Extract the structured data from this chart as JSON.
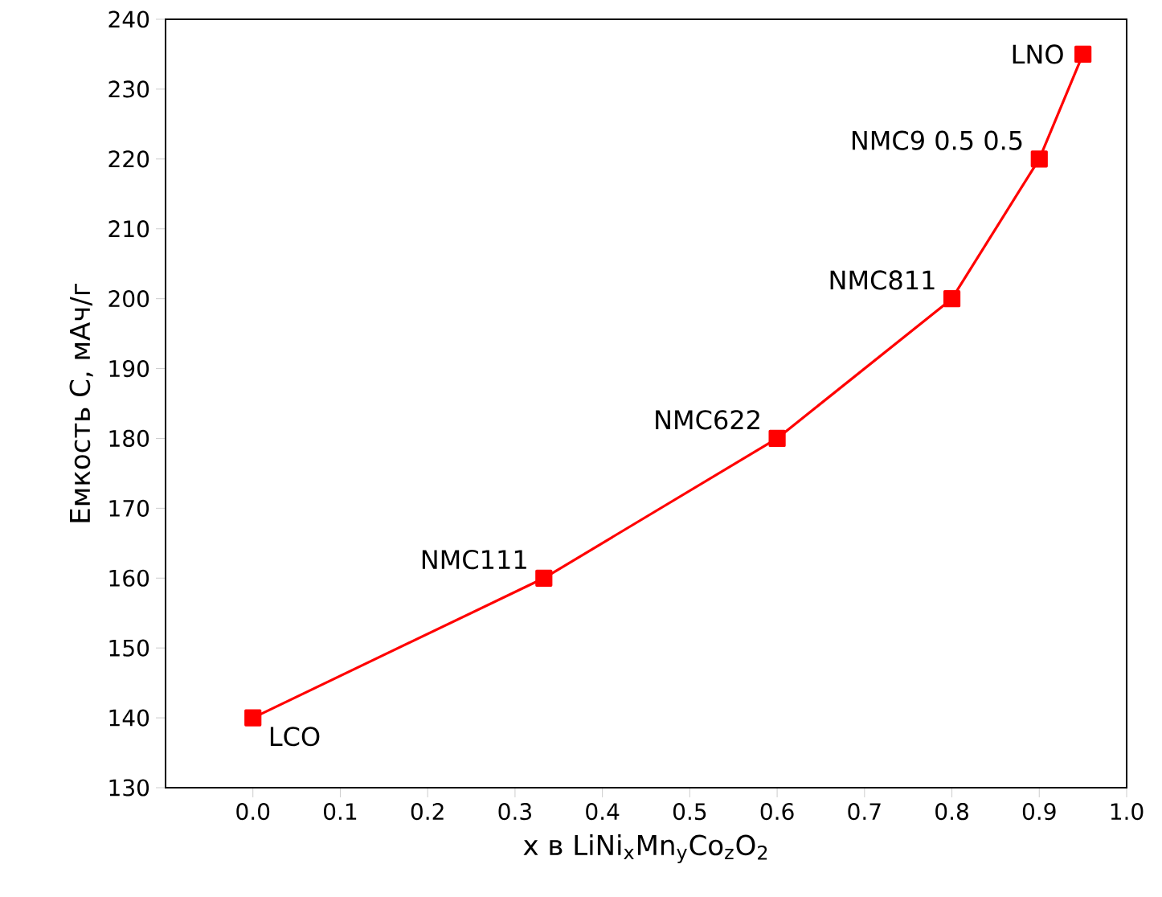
{
  "chart_data": {
    "type": "line",
    "xlabel": "x в LiNi$_{x}$Mn$_{y}$Co$_{z}$O$_{2}$",
    "ylabel": "Емкость C, мАч/г",
    "x": [
      0.0,
      0.333,
      0.6,
      0.8,
      0.9,
      0.95
    ],
    "series": [
      {
        "color": "#ff0000",
        "values": [
          140,
          160,
          180,
          200,
          220,
          235
        ]
      }
    ],
    "marker": "square",
    "line_style": "solid",
    "xlim": [
      -0.1,
      1.0
    ],
    "xticks": [
      {
        "value": 0,
        "label": "0.0"
      },
      0.1,
      0.2,
      0.3,
      0.4,
      0.5,
      0.6,
      0.7,
      0.8,
      0.9,
      {
        "value": 1,
        "label": "1.0"
      }
    ],
    "ylim": [
      130,
      240
    ],
    "yticks": [
      130,
      140,
      150,
      160,
      170,
      180,
      190,
      200,
      210,
      220,
      230,
      240
    ],
    "annotations": [
      {
        "text": "LCO",
        "x": 0.0,
        "y": 140
      },
      {
        "text": "NMC111",
        "x": 0.333,
        "y": 160
      },
      {
        "text": "NMC622",
        "x": 0.6,
        "y": 180
      },
      {
        "text": "NMC811",
        "x": 0.8,
        "y": 200
      },
      {
        "text": "NMC9 0.5 0.5",
        "x": 0.9,
        "y": 220
      },
      {
        "text": "LNO",
        "x": 0.95,
        "y": 235
      }
    ]
  }
}
